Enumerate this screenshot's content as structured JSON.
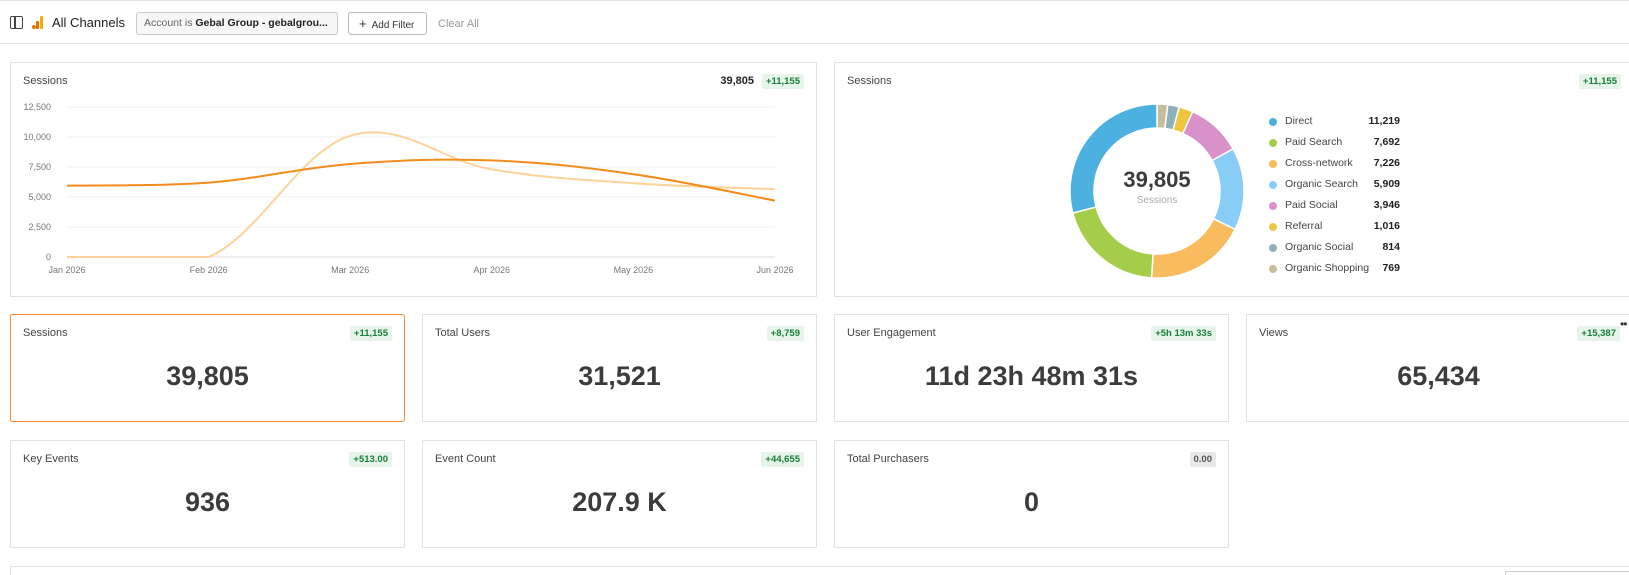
{
  "header": {
    "title": "All Channels",
    "filter": {
      "prefix": "Account is ",
      "value": "Gebal Group - gebalgrou..."
    },
    "add_filter_label": "Add Filter",
    "clear_all_label": "Clear All"
  },
  "sessions_line_card": {
    "title": "Sessions",
    "total": "39,805",
    "delta": "+11,155",
    "chart_data": {
      "type": "line",
      "x": [
        "Jan 2026",
        "Feb 2026",
        "Mar 2026",
        "Apr 2026",
        "May 2026",
        "Jun 2026"
      ],
      "yticks": [
        "0",
        "2,500",
        "5,000",
        "7,500",
        "10,000",
        "12,500"
      ],
      "ylim": [
        0,
        12500
      ],
      "series": [
        {
          "color": "#f28c1c",
          "values": [
            5950,
            6200,
            7750,
            8050,
            6900,
            4700
          ]
        },
        {
          "color": "#fcd49b",
          "values": [
            0,
            0,
            10100,
            7300,
            6150,
            5650
          ]
        }
      ]
    }
  },
  "sessions_donut_card": {
    "title": "Sessions",
    "delta": "+11,155",
    "center_value": "39,805",
    "center_label": "Sessions",
    "chart_data": {
      "type": "pie",
      "slices": [
        {
          "name": "Direct",
          "value": 11219,
          "label": "11,219",
          "color": "#4cb0e0"
        },
        {
          "name": "Paid Search",
          "value": 7692,
          "label": "7,692",
          "color": "#a6cd4a"
        },
        {
          "name": "Cross-network",
          "value": 7226,
          "label": "7,226",
          "color": "#f8bb5e"
        },
        {
          "name": "Organic Search",
          "value": 5909,
          "label": "5,909",
          "color": "#87cdf5"
        },
        {
          "name": "Paid Social",
          "value": 3946,
          "label": "3,946",
          "color": "#d891c9"
        },
        {
          "name": "Referral",
          "value": 1016,
          "label": "1,016",
          "color": "#eec53f"
        },
        {
          "name": "Organic Social",
          "value": 814,
          "label": "814",
          "color": "#8eb0ba"
        },
        {
          "name": "Organic Shopping",
          "value": 769,
          "label": "769",
          "color": "#c7bd9d"
        }
      ]
    }
  },
  "metrics": [
    {
      "title": "Sessions",
      "value": "39,805",
      "delta": "+11,155"
    },
    {
      "title": "Total Users",
      "value": "31,521",
      "delta": "+8,759"
    },
    {
      "title": "User Engagement",
      "value": "11d 23h 48m 31s",
      "delta": "+5h 13m 33s"
    },
    {
      "title": "Views",
      "value": "65,434",
      "delta": "+15,387"
    },
    {
      "title": "Key Events",
      "value": "936",
      "delta": "+513.00"
    },
    {
      "title": "Event Count",
      "value": "207.9 K",
      "delta": "+44,655"
    },
    {
      "title": "Total Purchasers",
      "value": "0",
      "delta": "0.00"
    }
  ],
  "colors": {
    "accent": "#f0892a",
    "positive_badge_bg": "#e6f4ea",
    "positive_badge_text": "#188038"
  }
}
